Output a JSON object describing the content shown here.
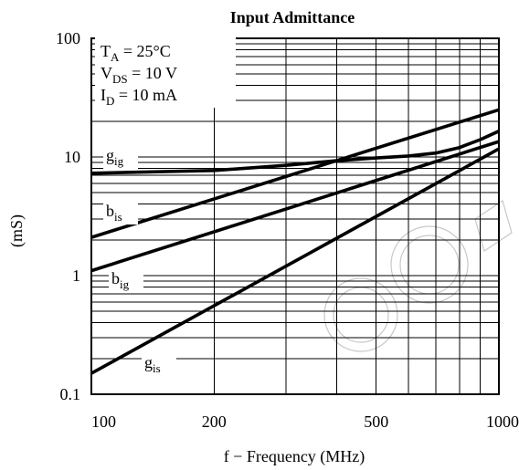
{
  "chart_data": {
    "type": "line",
    "title": "Input Admittance",
    "xlabel": "f − Frequency (MHz)",
    "ylabel": "(mS)",
    "xscale": "log",
    "yscale": "log",
    "xlim": [
      100,
      1000
    ],
    "ylim": [
      0.1,
      100
    ],
    "grid": true,
    "x_ticks": [
      100,
      200,
      500,
      1000
    ],
    "x_tick_labels": [
      "100",
      "200",
      "500",
      "1000"
    ],
    "y_ticks": [
      0.1,
      1,
      10,
      100
    ],
    "y_tick_labels": [
      "0.1",
      "1",
      "10",
      "100"
    ],
    "conditions": [
      {
        "main": "T",
        "sub": "A",
        "rest": " = 25°C"
      },
      {
        "main": "V",
        "sub": "DS",
        "rest": " = 10 V"
      },
      {
        "main": "I",
        "sub": "D",
        "rest": " = 10 mA"
      }
    ],
    "series": [
      {
        "name": "g",
        "sub": "ig",
        "label_position": "upper-left",
        "x": [
          100,
          200,
          300,
          400,
          500,
          600,
          700,
          800,
          900,
          1000
        ],
        "y": [
          7.3,
          7.7,
          8.5,
          9.3,
          9.8,
          10.2,
          10.8,
          12.0,
          14.0,
          16.5
        ]
      },
      {
        "name": "b",
        "sub": "is",
        "label_position": "left",
        "x": [
          100,
          1000
        ],
        "y": [
          2.1,
          25.0
        ]
      },
      {
        "name": "b",
        "sub": "ig",
        "label_position": "left-middle",
        "x": [
          100,
          1000
        ],
        "y": [
          1.1,
          13.5
        ]
      },
      {
        "name": "g",
        "sub": "is",
        "label_position": "lower-left",
        "x": [
          100,
          1000
        ],
        "y": [
          0.15,
          11.7
        ]
      }
    ]
  }
}
